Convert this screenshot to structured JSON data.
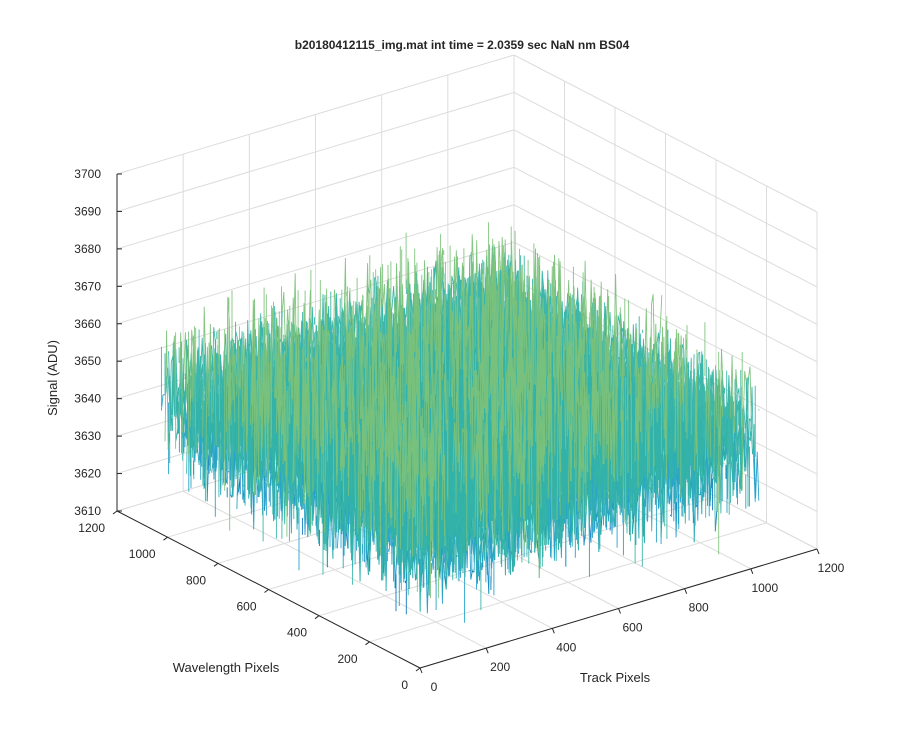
{
  "chart_data": {
    "type": "surface",
    "title": "b20180412115_img.mat int time = 2.0359 sec  NaN nm BS04",
    "xlabel": "Track Pixels",
    "ylabel": "Wavelength Pixels",
    "zlabel": "Signal (ADU)",
    "xlim": [
      0,
      1200
    ],
    "ylim": [
      0,
      1200
    ],
    "zlim": [
      3610,
      3700
    ],
    "xticks": [
      "0",
      "200",
      "400",
      "600",
      "800",
      "1000",
      "1200"
    ],
    "yticks": [
      "0",
      "200",
      "400",
      "600",
      "800",
      "1000",
      "1200"
    ],
    "zticks": [
      "3610",
      "3620",
      "3630",
      "3640",
      "3650",
      "3660",
      "3670",
      "3680",
      "3690",
      "3700"
    ],
    "grid": true,
    "colormap": [
      "#0072bd",
      "#1f9ec8",
      "#33b3a6",
      "#7cc27a",
      "#d8b53a"
    ],
    "surface": {
      "x_extent": [
        0,
        1024
      ],
      "y_extent": [
        0,
        1024
      ],
      "mean": 3645,
      "noise_range": [
        3620,
        3690
      ]
    }
  }
}
